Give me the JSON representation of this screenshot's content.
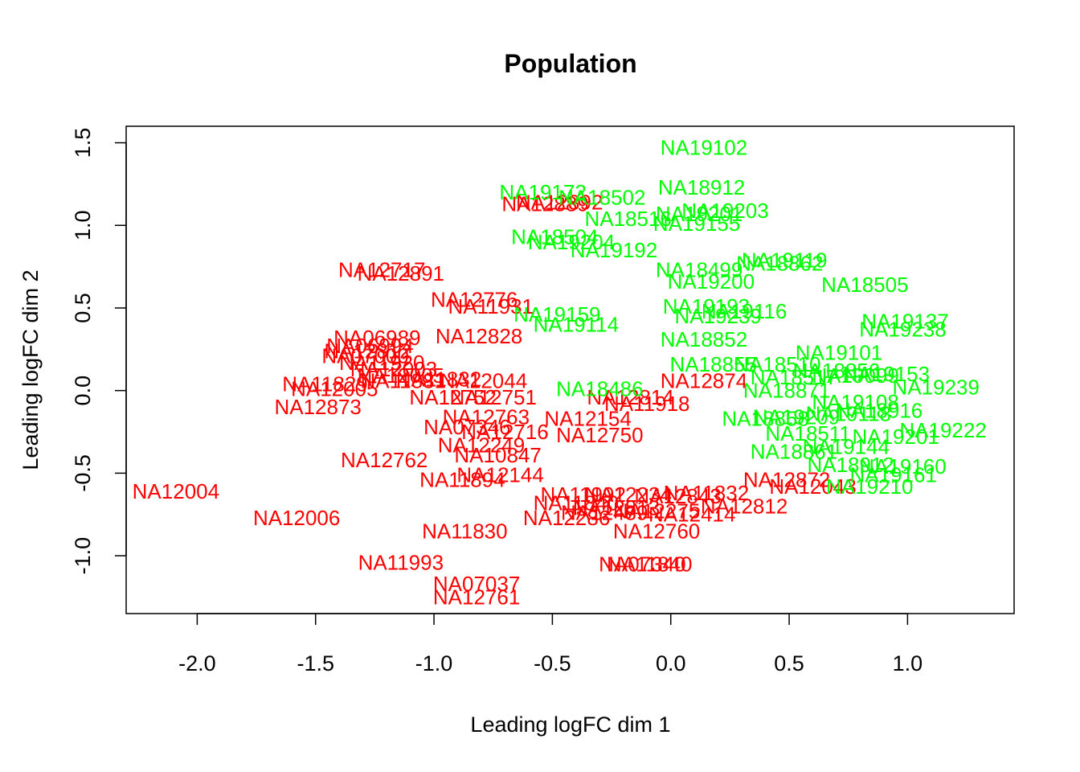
{
  "chart_data": {
    "type": "scatter",
    "title": "Population",
    "xlabel": "Leading logFC dim 1",
    "ylabel": "Leading logFC dim 2",
    "xlim": [
      -2.3,
      1.45
    ],
    "ylim": [
      -1.35,
      1.6
    ],
    "xticks": [
      -2.0,
      -1.5,
      -1.0,
      -0.5,
      0.0,
      0.5,
      1.0
    ],
    "xtick_labels": [
      "-2.0",
      "-1.5",
      "-1.0",
      "-0.5",
      "0.0",
      "0.5",
      "1.0"
    ],
    "yticks": [
      -1.0,
      -0.5,
      0.0,
      0.5,
      1.0,
      1.5
    ],
    "ytick_labels": [
      "-1.0",
      "-0.5",
      "0.0",
      "0.5",
      "1.0",
      "1.5"
    ],
    "grid": false,
    "colors": {
      "group1": "#ff0000",
      "group2": "#00ff00",
      "axis": "#000000"
    },
    "series": [
      {
        "color": "#ff0000",
        "points": [
          {
            "label": "NA12004",
            "x": -2.09,
            "y": -0.61
          },
          {
            "label": "NA12006",
            "x": -1.58,
            "y": -0.77
          },
          {
            "label": "NA12873",
            "x": -1.49,
            "y": -0.1
          },
          {
            "label": "NA12762",
            "x": -1.21,
            "y": -0.42
          },
          {
            "label": "NA11993",
            "x": -1.14,
            "y": -1.04
          },
          {
            "label": "NA12717",
            "x": -1.22,
            "y": 0.73
          },
          {
            "label": "NA12891",
            "x": -1.14,
            "y": 0.71
          },
          {
            "label": "NA12776",
            "x": -0.83,
            "y": 0.55
          },
          {
            "label": "NA11931",
            "x": -0.76,
            "y": 0.51
          },
          {
            "label": "NA12828",
            "x": -0.81,
            "y": 0.33
          },
          {
            "label": "NA06989",
            "x": -1.24,
            "y": 0.32
          },
          {
            "label": "NA06994",
            "x": -1.27,
            "y": 0.27
          },
          {
            "label": "NA12812",
            "x": -1.28,
            "y": 0.24
          },
          {
            "label": "NA07000",
            "x": -1.29,
            "y": 0.21
          },
          {
            "label": "NA11920",
            "x": -1.22,
            "y": 0.17
          },
          {
            "label": "NA12003",
            "x": -1.17,
            "y": 0.13
          },
          {
            "label": "NA12005",
            "x": -1.14,
            "y": 0.09
          },
          {
            "label": "NA11829",
            "x": -1.46,
            "y": 0.04
          },
          {
            "label": "NA12005",
            "x": -1.42,
            "y": 0.01
          },
          {
            "label": "NA11881",
            "x": -1.13,
            "y": 0.06
          },
          {
            "label": "NA11832",
            "x": -0.98,
            "y": 0.07
          },
          {
            "label": "NA12044",
            "x": -0.79,
            "y": 0.06
          },
          {
            "label": "NA12752",
            "x": -0.92,
            "y": -0.04
          },
          {
            "label": "NA12751",
            "x": -0.75,
            "y": -0.04
          },
          {
            "label": "NA12763",
            "x": -0.78,
            "y": -0.16
          },
          {
            "label": "NA07346",
            "x": -0.86,
            "y": -0.22
          },
          {
            "label": "NA12716",
            "x": -0.7,
            "y": -0.25
          },
          {
            "label": "NA12154",
            "x": -0.35,
            "y": -0.17
          },
          {
            "label": "NA12750",
            "x": -0.3,
            "y": -0.27
          },
          {
            "label": "NA12249",
            "x": -0.8,
            "y": -0.33
          },
          {
            "label": "NA10847",
            "x": -0.73,
            "y": -0.39
          },
          {
            "label": "NA12144",
            "x": -0.72,
            "y": -0.51
          },
          {
            "label": "NA11894",
            "x": -0.88,
            "y": -0.54
          },
          {
            "label": "NA11830",
            "x": -0.87,
            "y": -0.85
          },
          {
            "label": "NA07037",
            "x": -0.82,
            "y": -1.17
          },
          {
            "label": "NA12761",
            "x": -0.82,
            "y": -1.25
          },
          {
            "label": "NA12889",
            "x": -0.53,
            "y": 1.13
          },
          {
            "label": "NA12892",
            "x": -0.47,
            "y": 1.14
          },
          {
            "label": "NA12814",
            "x": -0.17,
            "y": -0.04
          },
          {
            "label": "NA11918",
            "x": -0.1,
            "y": -0.08
          },
          {
            "label": "NA12874",
            "x": 0.14,
            "y": 0.06
          },
          {
            "label": "NA11992",
            "x": -0.37,
            "y": -0.63
          },
          {
            "label": "NA12234",
            "x": -0.18,
            "y": -0.63
          },
          {
            "label": "NA11840",
            "x": -0.4,
            "y": -0.68
          },
          {
            "label": "NA12843",
            "x": 0.03,
            "y": -0.64
          },
          {
            "label": "NA11832",
            "x": 0.15,
            "y": -0.62
          },
          {
            "label": "NA12813",
            "x": -0.23,
            "y": -0.71
          },
          {
            "label": "NA12286",
            "x": -0.44,
            "y": -0.77
          },
          {
            "label": "NA12489",
            "x": -0.28,
            "y": -0.74
          },
          {
            "label": "NA12275",
            "x": -0.06,
            "y": -0.73
          },
          {
            "label": "NA12414",
            "x": 0.09,
            "y": -0.75
          },
          {
            "label": "NA12760",
            "x": -0.06,
            "y": -0.85
          },
          {
            "label": "NA12812",
            "x": 0.31,
            "y": -0.7
          },
          {
            "label": "NA11840",
            "x": -0.09,
            "y": -1.05
          },
          {
            "label": "NA07340",
            "x": -0.12,
            "y": -1.05
          },
          {
            "label": "NA12043",
            "x": 0.6,
            "y": -0.58
          },
          {
            "label": "NA12872",
            "x": 0.49,
            "y": -0.54
          }
        ]
      },
      {
        "color": "#00ff00",
        "points": [
          {
            "label": "NA19102",
            "x": 0.14,
            "y": 1.47
          },
          {
            "label": "NA18912",
            "x": 0.13,
            "y": 1.23
          },
          {
            "label": "NA19172",
            "x": -0.54,
            "y": 1.2
          },
          {
            "label": "NA18502",
            "x": -0.29,
            "y": 1.17
          },
          {
            "label": "NA19203",
            "x": 0.23,
            "y": 1.09
          },
          {
            "label": "NA19201",
            "x": 0.12,
            "y": 1.07
          },
          {
            "label": "NA18516",
            "x": -0.18,
            "y": 1.04
          },
          {
            "label": "NA19155",
            "x": 0.11,
            "y": 1.01
          },
          {
            "label": "NA18504",
            "x": -0.49,
            "y": 0.93
          },
          {
            "label": "NA19204",
            "x": -0.42,
            "y": 0.9
          },
          {
            "label": "NA19192",
            "x": -0.24,
            "y": 0.85
          },
          {
            "label": "NA19119",
            "x": 0.48,
            "y": 0.79
          },
          {
            "label": "NA18862",
            "x": 0.46,
            "y": 0.77
          },
          {
            "label": "NA18499",
            "x": 0.12,
            "y": 0.73
          },
          {
            "label": "NA19200",
            "x": 0.17,
            "y": 0.66
          },
          {
            "label": "NA18505",
            "x": 0.82,
            "y": 0.64
          },
          {
            "label": "NA19159",
            "x": -0.48,
            "y": 0.46
          },
          {
            "label": "NA19114",
            "x": -0.4,
            "y": 0.4
          },
          {
            "label": "NA19193",
            "x": 0.15,
            "y": 0.51
          },
          {
            "label": "NA19116",
            "x": 0.31,
            "y": 0.48
          },
          {
            "label": "NA19239",
            "x": 0.2,
            "y": 0.45
          },
          {
            "label": "NA18852",
            "x": 0.14,
            "y": 0.31
          },
          {
            "label": "NA19137",
            "x": 0.99,
            "y": 0.42
          },
          {
            "label": "NA19238",
            "x": 0.98,
            "y": 0.37
          },
          {
            "label": "NA18855",
            "x": 0.18,
            "y": 0.16
          },
          {
            "label": "NA18510",
            "x": 0.45,
            "y": 0.16
          },
          {
            "label": "NA19101",
            "x": 0.71,
            "y": 0.23
          },
          {
            "label": "NA19153",
            "x": 0.91,
            "y": 0.1
          },
          {
            "label": "NA18517",
            "x": 0.52,
            "y": 0.08
          },
          {
            "label": "NA18856",
            "x": 0.7,
            "y": 0.12
          },
          {
            "label": "NA19099",
            "x": 0.78,
            "y": 0.09
          },
          {
            "label": "NA19239",
            "x": 1.12,
            "y": 0.02
          },
          {
            "label": "NA18486",
            "x": -0.3,
            "y": 0.01
          },
          {
            "label": "NA18871",
            "x": 0.49,
            "y": 0.0
          },
          {
            "label": "NA19108",
            "x": 0.78,
            "y": -0.07
          },
          {
            "label": "NA18858",
            "x": 0.4,
            "y": -0.17
          },
          {
            "label": "NA19209",
            "x": 0.53,
            "y": -0.16
          },
          {
            "label": "NA19118",
            "x": 0.75,
            "y": -0.14
          },
          {
            "label": "NA18916",
            "x": 0.88,
            "y": -0.12
          },
          {
            "label": "NA19222",
            "x": 1.15,
            "y": -0.24
          },
          {
            "label": "NA19201",
            "x": 0.95,
            "y": -0.28
          },
          {
            "label": "NA18511",
            "x": 0.58,
            "y": -0.26
          },
          {
            "label": "NA18861",
            "x": 0.52,
            "y": -0.37
          },
          {
            "label": "NA19144",
            "x": 0.74,
            "y": -0.34
          },
          {
            "label": "NA18912",
            "x": 0.76,
            "y": -0.45
          },
          {
            "label": "NA19160",
            "x": 0.98,
            "y": -0.46
          },
          {
            "label": "NA19161",
            "x": 0.94,
            "y": -0.51
          },
          {
            "label": "NA19210",
            "x": 0.84,
            "y": -0.58
          }
        ]
      }
    ]
  }
}
